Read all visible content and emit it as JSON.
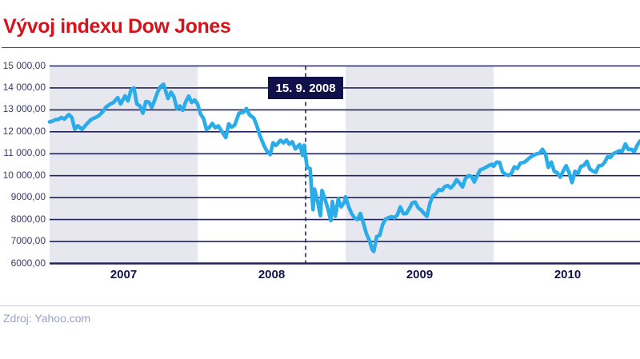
{
  "page": {
    "title": "Vývoj indexu Dow Jones",
    "source": "Zdroj: Yahoo.com"
  },
  "colors": {
    "title_red": "#d7121a",
    "rule_red": "#c8201e",
    "line_blue": "#29ace9",
    "grid_navy": "#23235b",
    "band_gray": "#e7e7ef",
    "axis_text": "#3a3a68",
    "year_text": "#14144b",
    "callout_bg": "#10104a",
    "callout_text": "#ffffff",
    "source_text": "#9aa1c5",
    "separator": "#c9cbdd"
  },
  "chart_data": {
    "type": "line",
    "title": "Vývoj indexu Dow Jones",
    "series_label": "Dow Jones index",
    "xlabel": "",
    "ylabel": "",
    "xlim": [
      2007,
      2011
    ],
    "ylim": [
      6000,
      15000
    ],
    "grid": "horizontal",
    "legend": "none",
    "ytick_values": [
      15000,
      14000,
      13000,
      12000,
      11000,
      10000,
      9000,
      8000,
      7000,
      6000
    ],
    "ytick_labels": [
      "15 000,00",
      "14 000,00",
      "13 000,00",
      "12 000,00",
      "11 000,00",
      "10 000,00",
      "9000,00",
      "8000,00",
      "7000,00",
      "6000,00"
    ],
    "years": [
      {
        "label": "2007",
        "shaded": true
      },
      {
        "label": "2008",
        "shaded": false
      },
      {
        "label": "2009",
        "shaded": true
      },
      {
        "label": "2010",
        "shaded": false
      }
    ],
    "annotation": {
      "label": "15. 9. 2008",
      "t": 2008.73
    },
    "points": [
      [
        2007.0,
        12450
      ],
      [
        2007.02,
        12487
      ],
      [
        2007.04,
        12556
      ],
      [
        2007.06,
        12566
      ],
      [
        2007.08,
        12653
      ],
      [
        2007.1,
        12580
      ],
      [
        2007.13,
        12787
      ],
      [
        2007.15,
        12650
      ],
      [
        2007.17,
        12114
      ],
      [
        2007.19,
        12276
      ],
      [
        2007.22,
        12110
      ],
      [
        2007.25,
        12354
      ],
      [
        2007.28,
        12560
      ],
      [
        2007.31,
        12650
      ],
      [
        2007.33,
        12720
      ],
      [
        2007.36,
        12920
      ],
      [
        2007.38,
        13121
      ],
      [
        2007.41,
        13264
      ],
      [
        2007.43,
        13326
      ],
      [
        2007.46,
        13556
      ],
      [
        2007.48,
        13267
      ],
      [
        2007.51,
        13639
      ],
      [
        2007.53,
        13408
      ],
      [
        2007.55,
        13907
      ],
      [
        2007.57,
        14000
      ],
      [
        2007.59,
        13265
      ],
      [
        2007.61,
        13182
      ],
      [
        2007.63,
        12846
      ],
      [
        2007.65,
        13379
      ],
      [
        2007.67,
        13358
      ],
      [
        2007.69,
        13113
      ],
      [
        2007.71,
        13443
      ],
      [
        2007.73,
        13820
      ],
      [
        2007.75,
        14066
      ],
      [
        2007.77,
        14164
      ],
      [
        2007.8,
        13522
      ],
      [
        2007.82,
        13807
      ],
      [
        2007.84,
        13595
      ],
      [
        2007.86,
        13043
      ],
      [
        2007.88,
        13177
      ],
      [
        2007.9,
        12981
      ],
      [
        2007.92,
        13372
      ],
      [
        2007.94,
        13626
      ],
      [
        2007.96,
        13340
      ],
      [
        2007.98,
        13451
      ],
      [
        2008.0,
        13265
      ],
      [
        2008.02,
        12800
      ],
      [
        2008.04,
        12606
      ],
      [
        2008.06,
        12099
      ],
      [
        2008.08,
        12207
      ],
      [
        2008.1,
        12381
      ],
      [
        2008.12,
        12182
      ],
      [
        2008.14,
        12266
      ],
      [
        2008.17,
        11951
      ],
      [
        2008.19,
        11740
      ],
      [
        2008.21,
        12361
      ],
      [
        2008.23,
        12216
      ],
      [
        2008.25,
        12303
      ],
      [
        2008.28,
        12849
      ],
      [
        2008.31,
        12891
      ],
      [
        2008.33,
        13058
      ],
      [
        2008.35,
        12780
      ],
      [
        2008.38,
        12620
      ],
      [
        2008.4,
        12280
      ],
      [
        2008.42,
        11843
      ],
      [
        2008.45,
        11350
      ],
      [
        2008.47,
        11101
      ],
      [
        2008.49,
        10962
      ],
      [
        2008.51,
        11497
      ],
      [
        2008.53,
        11378
      ],
      [
        2008.56,
        11615
      ],
      [
        2008.58,
        11500
      ],
      [
        2008.6,
        11628
      ],
      [
        2008.62,
        11434
      ],
      [
        2008.64,
        11544
      ],
      [
        2008.66,
        11221
      ],
      [
        2008.69,
        11422
      ],
      [
        2008.71,
        10918
      ],
      [
        2008.72,
        11388
      ],
      [
        2008.74,
        10365
      ],
      [
        2008.76,
        10325
      ],
      [
        2008.78,
        8451
      ],
      [
        2008.79,
        9387
      ],
      [
        2008.81,
        8852
      ],
      [
        2008.83,
        8176
      ],
      [
        2008.84,
        9325
      ],
      [
        2008.86,
        8943
      ],
      [
        2008.88,
        8497
      ],
      [
        2008.9,
        7950
      ],
      [
        2008.91,
        8829
      ],
      [
        2008.93,
        8149
      ],
      [
        2008.95,
        8935
      ],
      [
        2008.97,
        8579
      ],
      [
        2008.99,
        8776
      ],
      [
        2009.0,
        9034
      ],
      [
        2009.02,
        8599
      ],
      [
        2009.04,
        8281
      ],
      [
        2009.06,
        8078
      ],
      [
        2009.08,
        8001
      ],
      [
        2009.1,
        8281
      ],
      [
        2009.12,
        7850
      ],
      [
        2009.14,
        7366
      ],
      [
        2009.16,
        7063
      ],
      [
        2009.18,
        6626
      ],
      [
        2009.19,
        6547
      ],
      [
        2009.21,
        7224
      ],
      [
        2009.23,
        7278
      ],
      [
        2009.25,
        7776
      ],
      [
        2009.27,
        8018
      ],
      [
        2009.29,
        8083
      ],
      [
        2009.31,
        8131
      ],
      [
        2009.33,
        8076
      ],
      [
        2009.35,
        8212
      ],
      [
        2009.37,
        8575
      ],
      [
        2009.39,
        8269
      ],
      [
        2009.41,
        8277
      ],
      [
        2009.43,
        8500
      ],
      [
        2009.45,
        8763
      ],
      [
        2009.47,
        8799
      ],
      [
        2009.49,
        8540
      ],
      [
        2009.51,
        8438
      ],
      [
        2009.53,
        8281
      ],
      [
        2009.55,
        8146
      ],
      [
        2009.57,
        8744
      ],
      [
        2009.59,
        9093
      ],
      [
        2009.61,
        9172
      ],
      [
        2009.63,
        9370
      ],
      [
        2009.65,
        9321
      ],
      [
        2009.67,
        9506
      ],
      [
        2009.69,
        9544
      ],
      [
        2009.71,
        9441
      ],
      [
        2009.73,
        9580
      ],
      [
        2009.75,
        9820
      ],
      [
        2009.77,
        9665
      ],
      [
        2009.79,
        9488
      ],
      [
        2009.81,
        9865
      ],
      [
        2009.83,
        9996
      ],
      [
        2009.85,
        9972
      ],
      [
        2009.87,
        9713
      ],
      [
        2009.89,
        10023
      ],
      [
        2009.91,
        10270
      ],
      [
        2009.93,
        10318
      ],
      [
        2009.95,
        10389
      ],
      [
        2009.97,
        10471
      ],
      [
        2009.99,
        10520
      ],
      [
        2010.0,
        10428
      ],
      [
        2010.02,
        10618
      ],
      [
        2010.04,
        10610
      ],
      [
        2010.06,
        10173
      ],
      [
        2010.08,
        10067
      ],
      [
        2010.1,
        10012
      ],
      [
        2010.12,
        10099
      ],
      [
        2010.14,
        10402
      ],
      [
        2010.16,
        10325
      ],
      [
        2010.18,
        10566
      ],
      [
        2010.21,
        10625
      ],
      [
        2010.23,
        10742
      ],
      [
        2010.25,
        10850
      ],
      [
        2010.27,
        10927
      ],
      [
        2010.29,
        10997
      ],
      [
        2010.31,
        11019
      ],
      [
        2010.33,
        11204
      ],
      [
        2010.35,
        11009
      ],
      [
        2010.37,
        10380
      ],
      [
        2010.39,
        10620
      ],
      [
        2010.41,
        10193
      ],
      [
        2010.43,
        10137
      ],
      [
        2010.45,
        9932
      ],
      [
        2010.47,
        10211
      ],
      [
        2010.49,
        10451
      ],
      [
        2010.51,
        10144
      ],
      [
        2010.53,
        9686
      ],
      [
        2010.55,
        10198
      ],
      [
        2010.57,
        10098
      ],
      [
        2010.59,
        10425
      ],
      [
        2010.61,
        10466
      ],
      [
        2010.63,
        10654
      ],
      [
        2010.65,
        10303
      ],
      [
        2010.67,
        10214
      ],
      [
        2010.69,
        10151
      ],
      [
        2010.71,
        10448
      ],
      [
        2010.73,
        10463
      ],
      [
        2010.75,
        10608
      ],
      [
        2010.77,
        10860
      ],
      [
        2010.79,
        10830
      ],
      [
        2010.81,
        11006
      ],
      [
        2010.83,
        11063
      ],
      [
        2010.85,
        11133
      ],
      [
        2010.87,
        11118
      ],
      [
        2010.89,
        11444
      ],
      [
        2010.91,
        11193
      ],
      [
        2010.93,
        11204
      ],
      [
        2010.95,
        11092
      ],
      [
        2010.97,
        11382
      ],
      [
        2010.99,
        11578
      ]
    ]
  }
}
